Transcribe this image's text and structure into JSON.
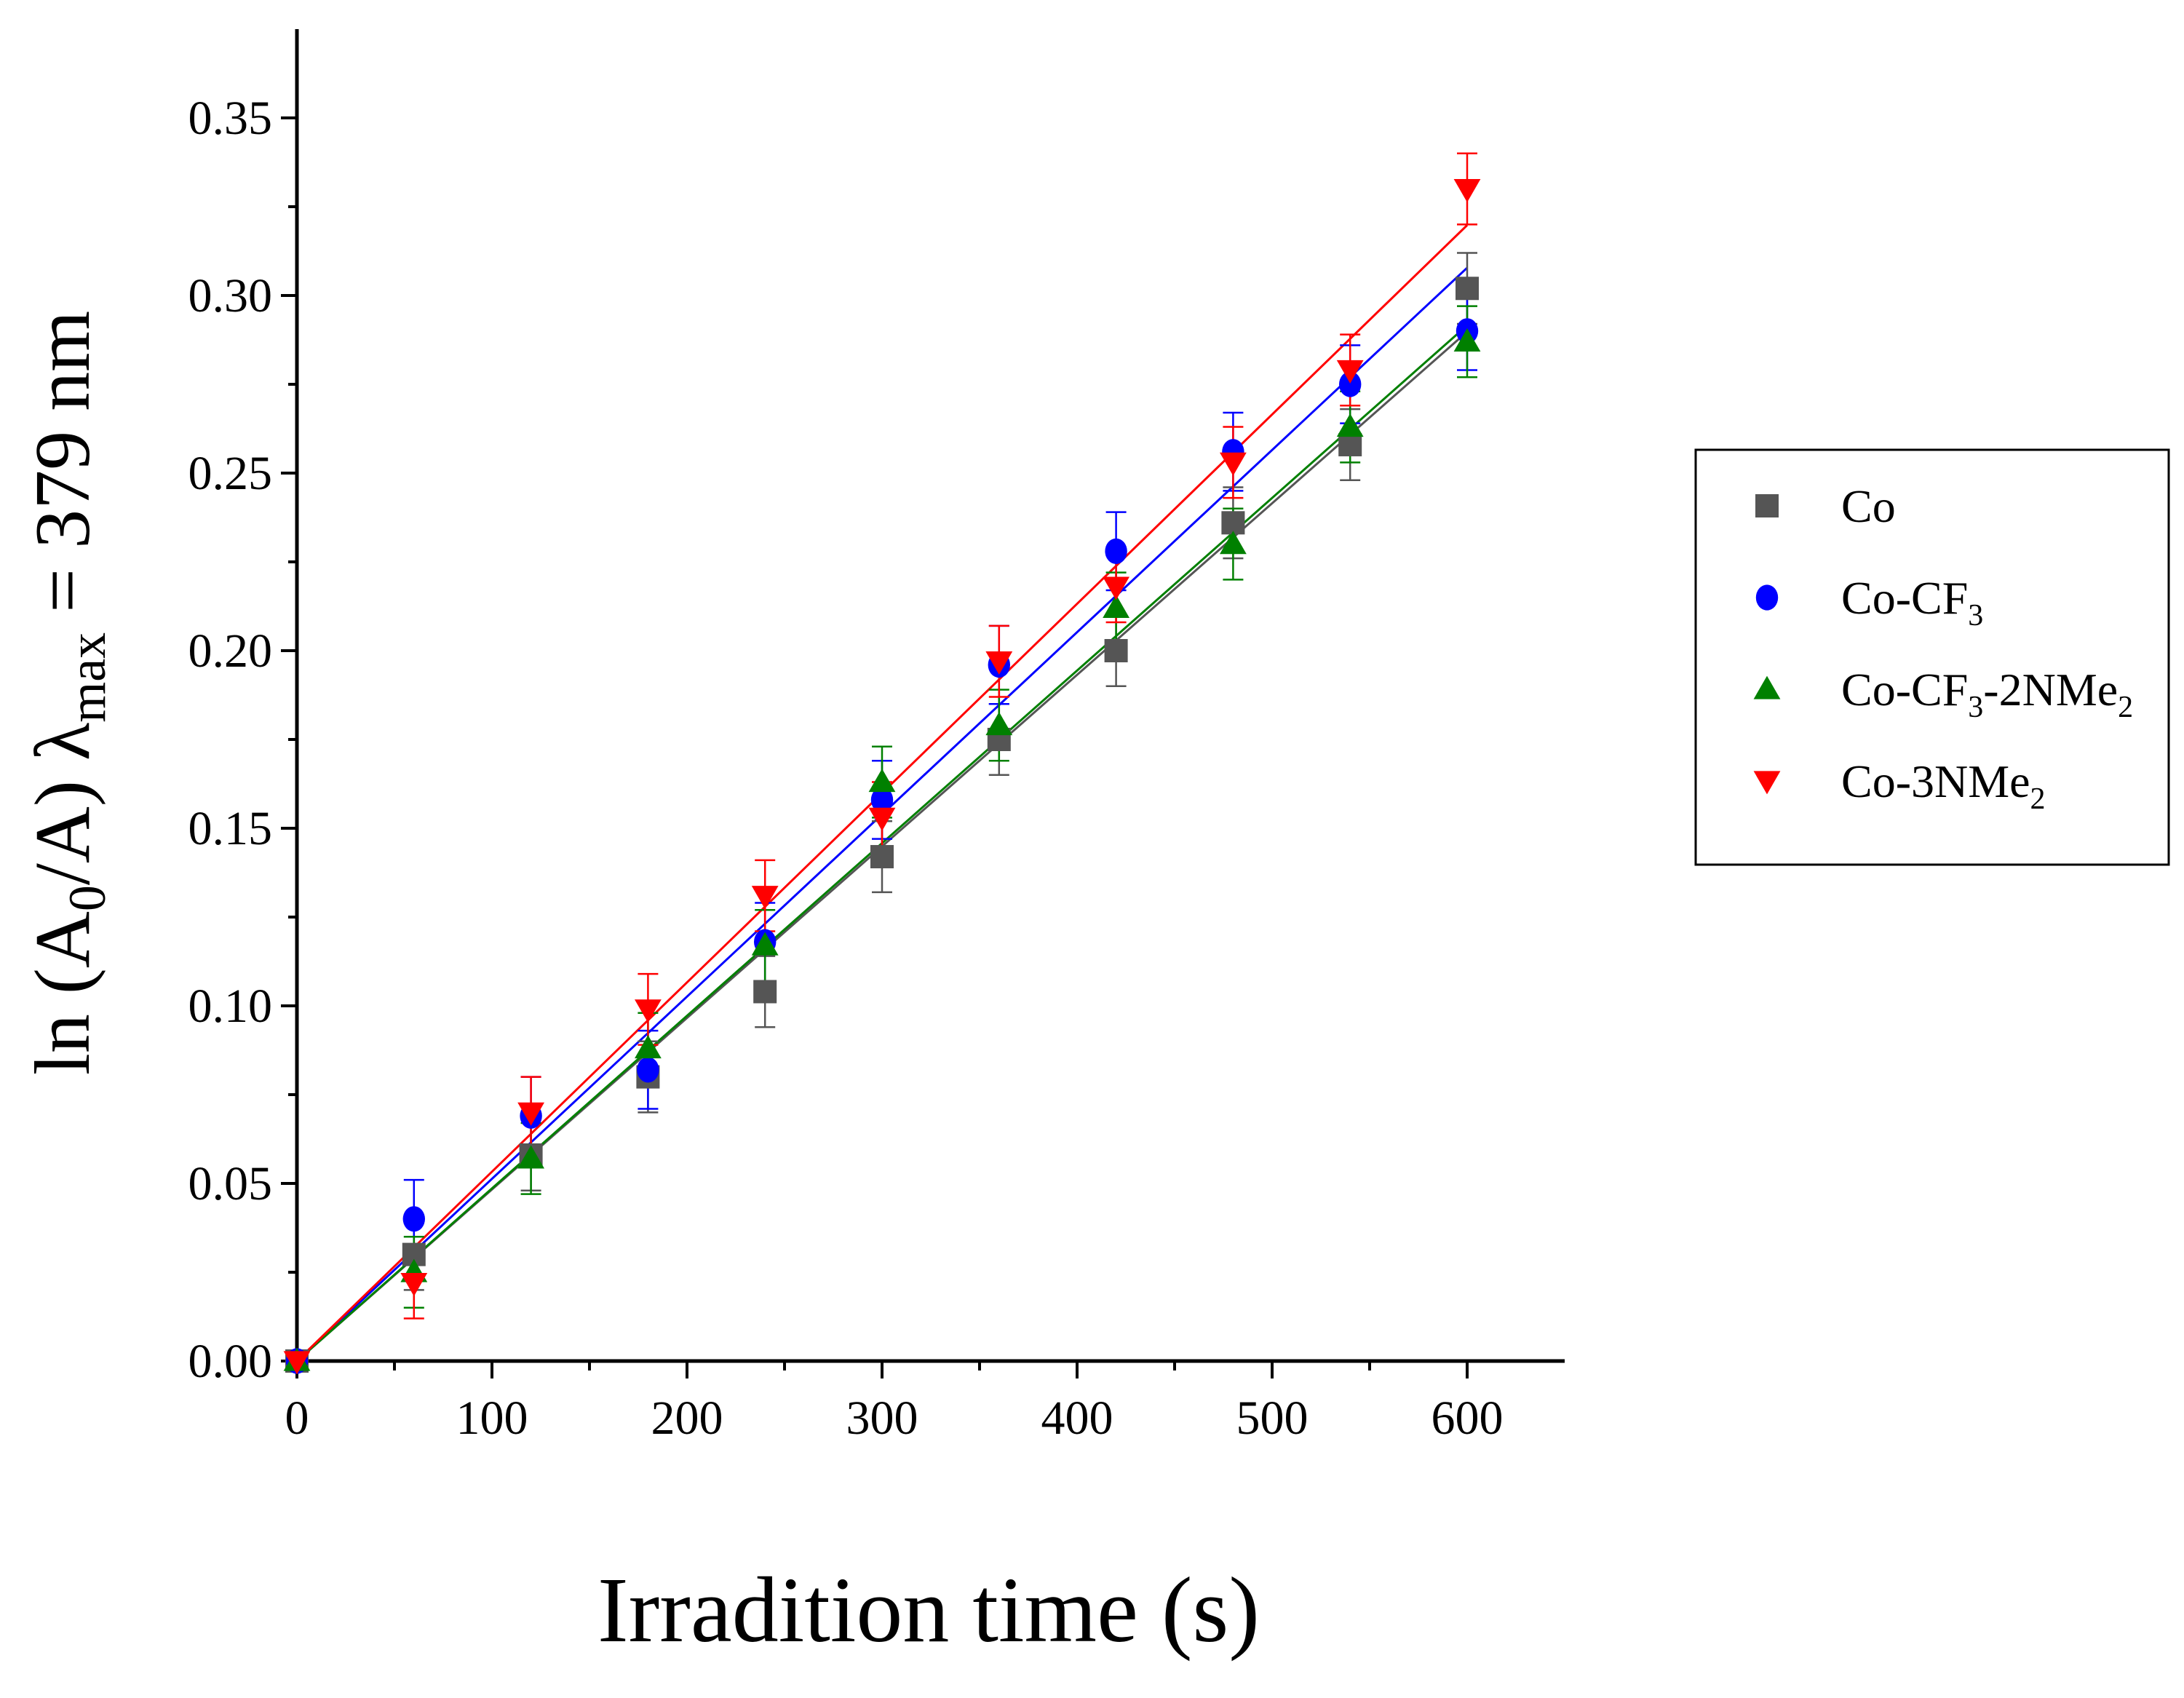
{
  "chart_data": {
    "type": "scatter",
    "title": "",
    "xlabel": "Irradition time (s)",
    "ylabel": {
      "prefix": "ln (A",
      "sub": "0",
      "mid": "/A) λ",
      "sub2": "max",
      "suffix": " = 379 nm"
    },
    "xlim": [
      0,
      650
    ],
    "ylim": [
      0,
      0.375
    ],
    "xticks": [
      0,
      100,
      200,
      300,
      400,
      500,
      600
    ],
    "xtick_labels": [
      "0",
      "100",
      "200",
      "300",
      "400",
      "500",
      "600"
    ],
    "yticks": [
      0,
      0.05,
      0.1,
      0.15,
      0.2,
      0.25,
      0.3,
      0.35
    ],
    "ytick_labels": [
      "0.00",
      "0.05",
      "0.10",
      "0.15",
      "0.20",
      "0.25",
      "0.30",
      "0.35"
    ],
    "x": [
      0,
      60,
      120,
      180,
      240,
      300,
      360,
      420,
      480,
      540,
      600
    ],
    "legend_position": "right",
    "series": [
      {
        "name": "Co",
        "legend": {
          "base": "Co",
          "parts": []
        },
        "marker": "square",
        "color": "#555555",
        "values": [
          0.0,
          0.03,
          0.058,
          0.08,
          0.104,
          0.142,
          0.175,
          0.2,
          0.236,
          0.258,
          0.302
        ],
        "errors": [
          0.0,
          0.01,
          0.01,
          0.01,
          0.01,
          0.01,
          0.01,
          0.01,
          0.01,
          0.01,
          0.01
        ],
        "fit": {
          "slope": 0.000483,
          "intercept": 0.0
        }
      },
      {
        "name": "Co-CF3",
        "legend": {
          "base": "Co-CF",
          "parts": [
            {
              "sub": "3",
              "text": ""
            }
          ]
        },
        "marker": "circle",
        "color": "#0000ff",
        "values": [
          0.0,
          0.04,
          0.069,
          0.082,
          0.118,
          0.158,
          0.196,
          0.228,
          0.256,
          0.275,
          0.29
        ],
        "errors": [
          0.0,
          0.011,
          0.011,
          0.011,
          0.011,
          0.011,
          0.011,
          0.011,
          0.011,
          0.011,
          0.011
        ],
        "fit": {
          "slope": 0.000513,
          "intercept": 0.0
        }
      },
      {
        "name": "Co-CF3-2NMe2",
        "legend": {
          "base": "Co-CF",
          "parts": [
            {
              "sub": "3",
              "text": "-2NMe"
            },
            {
              "sub": "2",
              "text": ""
            }
          ]
        },
        "marker": "triangle-up",
        "color": "#008000",
        "values": [
          0.0,
          0.025,
          0.057,
          0.088,
          0.117,
          0.163,
          0.179,
          0.212,
          0.23,
          0.263,
          0.287
        ],
        "errors": [
          0.0,
          0.01,
          0.01,
          0.01,
          0.01,
          0.01,
          0.01,
          0.01,
          0.01,
          0.01,
          0.01
        ],
        "fit": {
          "slope": 0.000486,
          "intercept": 0.0
        }
      },
      {
        "name": "Co-3NMe2",
        "legend": {
          "base": "Co-3NMe",
          "parts": [
            {
              "sub": "2",
              "text": ""
            }
          ]
        },
        "marker": "triangle-down",
        "color": "#ff0000",
        "values": [
          0.0,
          0.022,
          0.07,
          0.099,
          0.131,
          0.153,
          0.197,
          0.218,
          0.253,
          0.279,
          0.33
        ],
        "errors": [
          0.0,
          0.01,
          0.01,
          0.01,
          0.01,
          0.01,
          0.01,
          0.01,
          0.01,
          0.01,
          0.01
        ],
        "fit": {
          "slope": 0.000533,
          "intercept": 0.0
        }
      }
    ]
  }
}
